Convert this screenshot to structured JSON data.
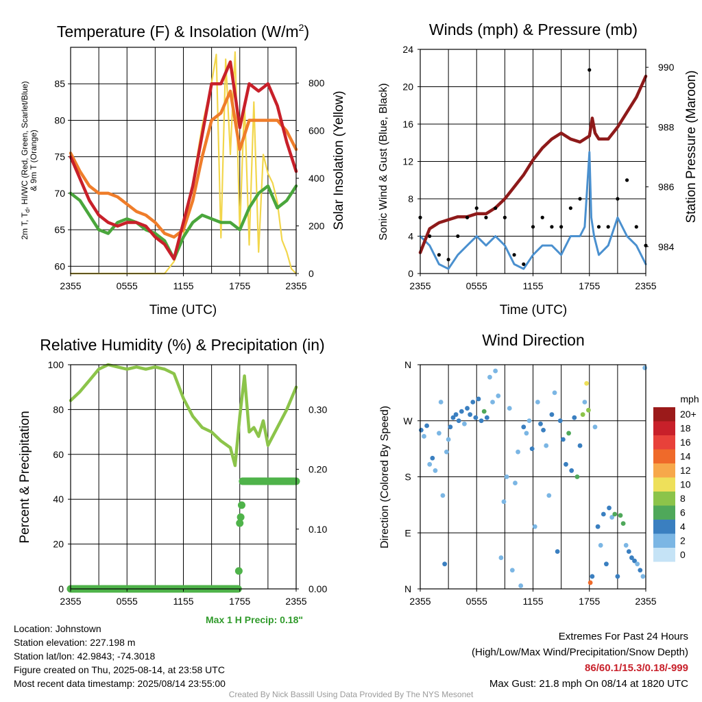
{
  "chart_data": [
    {
      "type": "line",
      "title": "Temperature (F) & Insolation (W/m2)",
      "title_parts": {
        "main": "Temperature (F) & Insolation (W/m",
        "sup": "2",
        "close": ")"
      },
      "xlabel": "Time (UTC)",
      "ylabel_left_lines": [
        "2m T, T",
        "d",
        ", HI/WC (Red, Green, Scarlet/Blue)",
        "& 9m T (Orange)"
      ],
      "ylabel_right": "Solar Insolation (Yellow)",
      "x_ticks": [
        "2355",
        "0555",
        "1155",
        "1755",
        "2355"
      ],
      "ylim": [
        59,
        90
      ],
      "y_ticks": [
        60,
        65,
        70,
        75,
        80,
        85
      ],
      "y2lim": [
        0,
        950
      ],
      "y2_ticks": [
        0,
        200,
        400,
        600,
        800
      ],
      "grid": true,
      "series": [
        {
          "name": "2m T",
          "color": "#c8202a",
          "axis": "left",
          "x": [
            0,
            1,
            2,
            3,
            4,
            5,
            6,
            7,
            8,
            9,
            10,
            11,
            12,
            13,
            14,
            15,
            16,
            17,
            18,
            19,
            20,
            21,
            22,
            23,
            24
          ],
          "values": [
            75,
            72,
            69,
            67,
            66,
            65.5,
            66,
            66,
            65.5,
            64,
            63,
            61,
            66,
            71,
            78,
            85,
            85,
            88,
            79,
            85,
            84,
            85,
            82,
            77,
            73
          ]
        },
        {
          "name": "9m T",
          "color": "#ef7d2a",
          "axis": "left",
          "x": [
            0,
            1,
            2,
            3,
            4,
            5,
            6,
            7,
            8,
            9,
            10,
            11,
            12,
            13,
            14,
            15,
            16,
            17,
            18,
            19,
            20,
            21,
            22,
            23,
            24
          ],
          "values": [
            75.5,
            73,
            71,
            70,
            70,
            69.5,
            68.5,
            67.5,
            67,
            66,
            64.5,
            64,
            65,
            69,
            75,
            80,
            81,
            84,
            76,
            80,
            80,
            80,
            80,
            78.5,
            76
          ]
        },
        {
          "name": "Td",
          "color": "#4aa63c",
          "axis": "left",
          "x": [
            0,
            1,
            2,
            3,
            4,
            5,
            6,
            7,
            8,
            9,
            10,
            11,
            12,
            13,
            14,
            15,
            16,
            17,
            18,
            19,
            20,
            21,
            22,
            23,
            24
          ],
          "values": [
            70,
            69,
            67,
            65,
            64.5,
            66,
            66.5,
            66,
            65,
            64.5,
            63.5,
            61,
            64,
            66,
            67,
            66.5,
            66,
            66,
            65,
            68,
            70,
            71,
            68,
            69,
            71
          ]
        },
        {
          "name": "Solar Insolation",
          "color": "#f2d64b",
          "axis": "right",
          "x": [
            0,
            1,
            2,
            3,
            4,
            5,
            6,
            7,
            8,
            9,
            10,
            11,
            12,
            13,
            14,
            15,
            15.5,
            16,
            16.5,
            17,
            17.5,
            18,
            18.5,
            19,
            19.5,
            20,
            20.5,
            21,
            21.5,
            22,
            22.5,
            23,
            23.5,
            24
          ],
          "values": [
            0,
            0,
            0,
            0,
            0,
            0,
            0,
            0,
            0,
            0,
            0,
            50,
            160,
            380,
            620,
            800,
            920,
            150,
            900,
            500,
            930,
            180,
            720,
            120,
            720,
            90,
            500,
            420,
            380,
            300,
            140,
            90,
            20,
            0
          ]
        }
      ]
    },
    {
      "type": "line",
      "title": "Winds (mph) & Pressure (mb)",
      "xlabel": "Time (UTC)",
      "ylabel_left": "Sonic Wind & Gust (Blue, Black)",
      "ylabel_right": "Station Pressure (Maroon)",
      "x_ticks": [
        "2355",
        "0555",
        "1155",
        "1755",
        "2355"
      ],
      "ylim": [
        0,
        24
      ],
      "y_ticks": [
        0,
        4,
        8,
        12,
        16,
        20,
        24
      ],
      "y2lim": [
        983.1,
        990.6
      ],
      "y2_ticks": [
        984,
        986,
        988,
        990
      ],
      "grid": true,
      "series": [
        {
          "name": "Sonic Wind",
          "color": "#4a90cf",
          "axis": "left",
          "x": [
            0,
            1,
            2,
            3,
            4,
            5,
            6,
            7,
            8,
            9,
            10,
            11,
            12,
            13,
            14,
            15,
            16,
            17,
            17.5,
            18,
            18.2,
            18.5,
            19,
            20,
            21,
            22,
            23,
            24
          ],
          "values": [
            4,
            3,
            1,
            0.5,
            2,
            3,
            4,
            3,
            4,
            3,
            1,
            0.5,
            2,
            3,
            3,
            2,
            4,
            4,
            5,
            13,
            6,
            4,
            2,
            3,
            6,
            4,
            3,
            1
          ]
        },
        {
          "name": "Wind Gust",
          "color": "#000000",
          "axis": "left",
          "x": [
            0,
            1,
            2,
            3,
            4,
            5,
            6,
            7,
            8,
            9,
            10,
            11,
            12,
            13,
            14,
            15,
            16,
            17,
            18,
            19,
            20,
            21,
            22,
            23,
            24
          ],
          "values": [
            6,
            4,
            2,
            1.5,
            4,
            6,
            7,
            6,
            7,
            6,
            2,
            1,
            5,
            6,
            5,
            5,
            7,
            8,
            21.8,
            5,
            5,
            8,
            10,
            5,
            3
          ]
        },
        {
          "name": "Station Pressure",
          "color": "#8e1a1a",
          "axis": "left_pressure",
          "x": [
            0,
            1,
            2,
            3,
            4,
            5,
            6,
            7,
            8,
            9,
            10,
            11,
            12,
            13,
            14,
            15,
            16,
            17,
            18,
            18.3,
            18.6,
            19,
            20,
            21,
            22,
            23,
            24
          ],
          "values": [
            983.8,
            984.6,
            984.8,
            984.9,
            985.0,
            985.0,
            985.1,
            985.1,
            985.3,
            985.6,
            986.0,
            986.4,
            986.9,
            987.3,
            987.6,
            987.8,
            987.6,
            987.5,
            987.7,
            988.3,
            987.8,
            987.6,
            987.6,
            988.0,
            988.5,
            989.0,
            989.7
          ]
        }
      ]
    },
    {
      "type": "line",
      "title": "Relative Humidity (%) & Precipitation (in)",
      "ylabel_left": "Percent & Precipitation",
      "x_ticks": [
        "2355",
        "0555",
        "1155",
        "1755",
        "2355"
      ],
      "ylim": [
        0,
        100
      ],
      "y_ticks": [
        0,
        20,
        40,
        60,
        80,
        100
      ],
      "y2lim": [
        0,
        0.375
      ],
      "y2_ticks": [
        "0.00",
        "0.10",
        "0.20",
        "0.30"
      ],
      "y2_tick_values": [
        0,
        0.1,
        0.2,
        0.3
      ],
      "grid": true,
      "series": [
        {
          "name": "Relative Humidity",
          "color": "#8cc44a",
          "axis": "left",
          "x": [
            0,
            1,
            2,
            3,
            4,
            5,
            6,
            7,
            8,
            9,
            10,
            11,
            12,
            13,
            14,
            15,
            16,
            17,
            17.5,
            18,
            18.5,
            19,
            19.5,
            20,
            20.5,
            21,
            22,
            23,
            24
          ],
          "values": [
            84,
            88,
            93,
            98,
            100,
            99,
            98,
            99,
            98,
            99,
            98,
            96,
            85,
            77,
            72,
            70,
            66,
            63,
            55,
            77,
            95,
            70,
            72,
            68,
            75,
            64,
            72,
            80,
            90
          ]
        },
        {
          "name": "Precipitation",
          "color": "#4fb34a",
          "axis": "right",
          "x": [
            0,
            1,
            2,
            3,
            4,
            5,
            6,
            7,
            8,
            9,
            10,
            11,
            12,
            13,
            14,
            15,
            16,
            17,
            17.9,
            18.0,
            18.1,
            18.2,
            18.3,
            19,
            20,
            21,
            22,
            23,
            24
          ],
          "values": [
            0,
            0,
            0,
            0,
            0,
            0,
            0,
            0,
            0,
            0,
            0,
            0,
            0,
            0,
            0,
            0,
            0,
            0,
            0.03,
            0.11,
            0.12,
            0.14,
            0.18,
            0.18,
            0.18,
            0.18,
            0.18,
            0.18,
            0.18
          ]
        }
      ]
    },
    {
      "type": "scatter",
      "title": "Wind Direction",
      "ylabel_left": "Direction (Colored By Speed)",
      "x_ticks": [
        "2355",
        "0555",
        "1155",
        "1755",
        "2355"
      ],
      "y_ticks": [
        "N",
        "E",
        "S",
        "W",
        "N"
      ],
      "y_tick_degrees": [
        0,
        90,
        180,
        270,
        360
      ],
      "ylim": [
        0,
        360
      ],
      "grid": true,
      "legend_title": "mph",
      "legend_labels": [
        "20+",
        "18",
        "16",
        "14",
        "12",
        "10",
        "8",
        "6",
        "4",
        "2",
        "0"
      ],
      "legend_colors": [
        "#9b1a1a",
        "#c8202a",
        "#e8413a",
        "#ef6a2a",
        "#f7a84a",
        "#eee05a",
        "#8cc44a",
        "#4fa85a",
        "#3a7fc0",
        "#7bb6e4",
        "#c5e3f6"
      ],
      "points": [
        {
          "x": 0.1,
          "d": 255,
          "s": 3
        },
        {
          "x": 0.4,
          "d": 245,
          "s": 2
        },
        {
          "x": 0.7,
          "d": 262,
          "s": 4
        },
        {
          "x": 1.0,
          "d": 200,
          "s": 2
        },
        {
          "x": 1.3,
          "d": 210,
          "s": 3
        },
        {
          "x": 1.6,
          "d": 190,
          "s": 2
        },
        {
          "x": 2.0,
          "d": 250,
          "s": 1
        },
        {
          "x": 2.2,
          "d": 300,
          "s": 1
        },
        {
          "x": 2.4,
          "d": 150,
          "s": 1
        },
        {
          "x": 2.6,
          "d": 40,
          "s": 3
        },
        {
          "x": 2.8,
          "d": 220,
          "s": 2
        },
        {
          "x": 3.0,
          "d": 240,
          "s": 1
        },
        {
          "x": 3.2,
          "d": 260,
          "s": 3
        },
        {
          "x": 3.5,
          "d": 275,
          "s": 3
        },
        {
          "x": 3.8,
          "d": 280,
          "s": 4
        },
        {
          "x": 4.1,
          "d": 270,
          "s": 3
        },
        {
          "x": 4.4,
          "d": 285,
          "s": 3
        },
        {
          "x": 4.7,
          "d": 265,
          "s": 2
        },
        {
          "x": 5.0,
          "d": 290,
          "s": 3
        },
        {
          "x": 5.3,
          "d": 280,
          "s": 4
        },
        {
          "x": 5.6,
          "d": 300,
          "s": 4
        },
        {
          "x": 5.9,
          "d": 275,
          "s": 3
        },
        {
          "x": 6.2,
          "d": 305,
          "s": 4
        },
        {
          "x": 6.5,
          "d": 270,
          "s": 3
        },
        {
          "x": 6.8,
          "d": 285,
          "s": 5
        },
        {
          "x": 7.1,
          "d": 275,
          "s": 4
        },
        {
          "x": 7.4,
          "d": 340,
          "s": 2
        },
        {
          "x": 7.7,
          "d": 300,
          "s": 1
        },
        {
          "x": 8.0,
          "d": 350,
          "s": 1
        },
        {
          "x": 8.3,
          "d": 310,
          "s": 2
        },
        {
          "x": 8.6,
          "d": 50,
          "s": 1
        },
        {
          "x": 8.9,
          "d": 140,
          "s": 1
        },
        {
          "x": 9.2,
          "d": 180,
          "s": 1
        },
        {
          "x": 9.5,
          "d": 290,
          "s": 2
        },
        {
          "x": 9.8,
          "d": 30,
          "s": 1
        },
        {
          "x": 10.1,
          "d": 170,
          "s": 1
        },
        {
          "x": 10.4,
          "d": 220,
          "s": 1
        },
        {
          "x": 10.7,
          "d": 5,
          "s": 1
        },
        {
          "x": 11.0,
          "d": 260,
          "s": 3
        },
        {
          "x": 11.3,
          "d": 250,
          "s": 2
        },
        {
          "x": 11.6,
          "d": 270,
          "s": 2
        },
        {
          "x": 11.9,
          "d": 225,
          "s": 3
        },
        {
          "x": 12.2,
          "d": 100,
          "s": 1
        },
        {
          "x": 12.5,
          "d": 300,
          "s": 2
        },
        {
          "x": 12.8,
          "d": 265,
          "s": 3
        },
        {
          "x": 13.1,
          "d": 255,
          "s": 4
        },
        {
          "x": 13.4,
          "d": 230,
          "s": 2
        },
        {
          "x": 13.7,
          "d": 150,
          "s": 1
        },
        {
          "x": 14.0,
          "d": 280,
          "s": 3
        },
        {
          "x": 14.3,
          "d": 315,
          "s": 2
        },
        {
          "x": 14.6,
          "d": 60,
          "s": 3
        },
        {
          "x": 14.9,
          "d": 270,
          "s": 4
        },
        {
          "x": 15.2,
          "d": 240,
          "s": 3
        },
        {
          "x": 15.5,
          "d": 200,
          "s": 3
        },
        {
          "x": 15.8,
          "d": 250,
          "s": 6
        },
        {
          "x": 16.1,
          "d": 190,
          "s": 4
        },
        {
          "x": 16.4,
          "d": 275,
          "s": 3
        },
        {
          "x": 16.7,
          "d": 180,
          "s": 6
        },
        {
          "x": 17.0,
          "d": 230,
          "s": 3
        },
        {
          "x": 17.3,
          "d": 280,
          "s": 7
        },
        {
          "x": 17.5,
          "d": 300,
          "s": 1
        },
        {
          "x": 17.7,
          "d": 330,
          "s": 9
        },
        {
          "x": 17.9,
          "d": 287,
          "s": 7
        },
        {
          "x": 18.1,
          "d": 10,
          "s": 14
        },
        {
          "x": 18.3,
          "d": 20,
          "s": 3
        },
        {
          "x": 18.6,
          "d": 260,
          "s": 2
        },
        {
          "x": 18.9,
          "d": 100,
          "s": 4
        },
        {
          "x": 19.2,
          "d": 70,
          "s": 2
        },
        {
          "x": 19.5,
          "d": 120,
          "s": 4
        },
        {
          "x": 19.8,
          "d": 40,
          "s": 3
        },
        {
          "x": 20.1,
          "d": 130,
          "s": 3
        },
        {
          "x": 20.4,
          "d": 115,
          "s": 2
        },
        {
          "x": 20.7,
          "d": 120,
          "s": 6
        },
        {
          "x": 21.0,
          "d": 20,
          "s": 3
        },
        {
          "x": 21.3,
          "d": 118,
          "s": 6
        },
        {
          "x": 21.6,
          "d": 105,
          "s": 5
        },
        {
          "x": 21.9,
          "d": 70,
          "s": 2
        },
        {
          "x": 22.2,
          "d": 60,
          "s": 4
        },
        {
          "x": 22.5,
          "d": 50,
          "s": 3
        },
        {
          "x": 22.8,
          "d": 45,
          "s": 3
        },
        {
          "x": 23.1,
          "d": 40,
          "s": 2
        },
        {
          "x": 23.4,
          "d": 30,
          "s": 3
        },
        {
          "x": 23.7,
          "d": 20,
          "s": 2
        },
        {
          "x": 23.9,
          "d": 355,
          "s": 1
        }
      ]
    }
  ],
  "precip_note": "Max 1 H Precip: 0.18\"",
  "info_left": [
    "Location: Johnstown",
    "Station elevation: 227.198 m",
    "Station lat/lon: 42.9843; -74.3018",
    "Figure created on Thu, 2025-08-14, at 23:58 UTC",
    "Most recent data timestamp: 2025/08/14 23:55:00"
  ],
  "extremes": {
    "title": "Extremes For Past 24 Hours",
    "subtitle": "(High/Low/Max Wind/Precipitation/Snow Depth)",
    "values": "86/60.1/15.3/0.18/-999",
    "max_gust": "Max Gust: 21.8 mph On 08/14 at 1820 UTC"
  },
  "credit": "Created By Nick Bassill Using Data Provided By The NYS Mesonet"
}
